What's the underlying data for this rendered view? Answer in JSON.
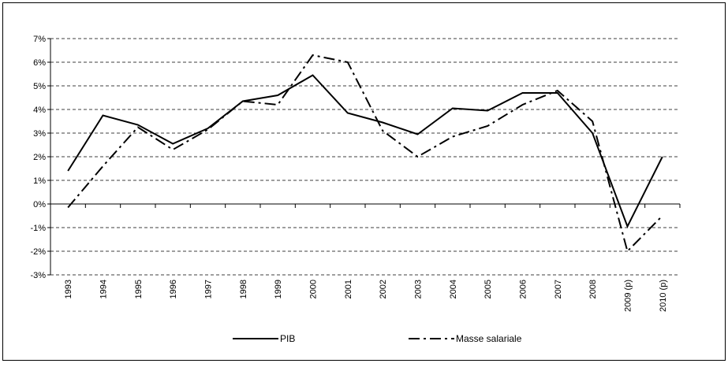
{
  "chart_data": {
    "type": "line",
    "categories": [
      "1993",
      "1994",
      "1995",
      "1996",
      "1997",
      "1998",
      "1999",
      "2000",
      "2001",
      "2002",
      "2003",
      "2004",
      "2005",
      "2006",
      "2007",
      "2008",
      "2009 (p)",
      "2010 (p)"
    ],
    "series": [
      {
        "name": "PIB",
        "color": "#000000",
        "style": "solid",
        "values": [
          1.4,
          3.75,
          3.35,
          2.55,
          3.2,
          4.35,
          4.6,
          5.45,
          3.85,
          3.45,
          2.95,
          4.05,
          3.95,
          4.7,
          4.7,
          3.0,
          -0.95,
          2.0
        ]
      },
      {
        "name": "Masse salariale",
        "color": "#000000",
        "style": "dash-dot",
        "values": [
          -0.15,
          1.6,
          3.25,
          2.3,
          3.15,
          4.35,
          4.2,
          6.3,
          6.0,
          3.1,
          2.0,
          2.85,
          3.3,
          4.2,
          4.8,
          3.5,
          -2.0,
          -0.5
        ]
      }
    ],
    "ylim": [
      -3,
      7
    ],
    "yticks": [
      {
        "value": -3,
        "label": "-3%"
      },
      {
        "value": -2,
        "label": "-2%"
      },
      {
        "value": -1,
        "label": "-1%"
      },
      {
        "value": 0,
        "label": "0%"
      },
      {
        "value": 1,
        "label": "1%"
      },
      {
        "value": 2,
        "label": "2%"
      },
      {
        "value": 3,
        "label": "3%"
      },
      {
        "value": 4,
        "label": "4%"
      },
      {
        "value": 5,
        "label": "5%"
      },
      {
        "value": 6,
        "label": "6%"
      },
      {
        "value": 7,
        "label": "7%"
      }
    ],
    "grid": true,
    "legend": "bottom"
  }
}
